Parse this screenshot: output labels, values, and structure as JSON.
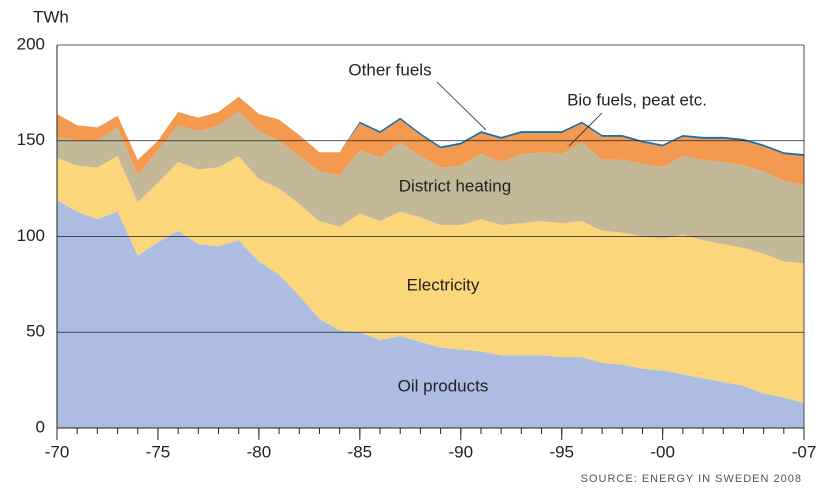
{
  "chart_data": {
    "type": "stacked_area",
    "y_label": "TWh",
    "source": "SOURCE: ENERGY IN SWEDEN 2008",
    "x": [
      1970,
      1971,
      1972,
      1973,
      1974,
      1975,
      1976,
      1977,
      1978,
      1979,
      1980,
      1981,
      1982,
      1983,
      1984,
      1985,
      1986,
      1987,
      1988,
      1989,
      1990,
      1991,
      1992,
      1993,
      1994,
      1995,
      1996,
      1997,
      1998,
      1999,
      2000,
      2001,
      2002,
      2003,
      2004,
      2005,
      2006,
      2007
    ],
    "xlim": [
      1970,
      2007
    ],
    "xticks": [
      {
        "value": 1970,
        "label": "-70"
      },
      {
        "value": 1975,
        "label": "-75"
      },
      {
        "value": 1980,
        "label": "-80"
      },
      {
        "value": 1985,
        "label": "-85"
      },
      {
        "value": 1990,
        "label": "-90"
      },
      {
        "value": 1995,
        "label": "-95"
      },
      {
        "value": 2000,
        "label": "-00"
      },
      {
        "value": 2007,
        "label": "-07"
      }
    ],
    "ylim": [
      0,
      200
    ],
    "yticks": [
      0,
      50,
      100,
      150,
      200
    ],
    "grid": true,
    "series": [
      {
        "name": "Oil products",
        "color": "#adbde1",
        "values": [
          119,
          113,
          109,
          113,
          90,
          97,
          103,
          96,
          95,
          98,
          87,
          80,
          69,
          57,
          51,
          50,
          46,
          48,
          45,
          42,
          41,
          40,
          38,
          38,
          38,
          37,
          37,
          34,
          33,
          31,
          30,
          28,
          26,
          24,
          22,
          18,
          16,
          13
        ]
      },
      {
        "name": "Electricity",
        "color": "#fbd67b",
        "values": [
          22,
          24,
          27,
          29,
          28,
          31,
          36,
          39,
          41,
          44,
          43,
          45,
          48,
          51,
          54,
          62,
          62,
          65,
          65,
          64,
          65,
          69,
          68,
          69,
          70,
          70,
          71,
          69,
          69,
          69,
          69,
          73,
          72,
          72,
          72,
          73,
          71,
          73
        ]
      },
      {
        "name": "District heating",
        "color": "#c3b999",
        "values": [
          11,
          13,
          14,
          15,
          14,
          17,
          19,
          20,
          22,
          23,
          25,
          25,
          25,
          26,
          27,
          33,
          33,
          36,
          32,
          30,
          31,
          34,
          33,
          36,
          36,
          36,
          41,
          37,
          38,
          38,
          37,
          41,
          42,
          43,
          43,
          43,
          42,
          41
        ]
      },
      {
        "name": "Bio fuels, peat etc.",
        "color": "#f39a50",
        "values": [
          12,
          8,
          7,
          6,
          8,
          5,
          7,
          7,
          7,
          8,
          9,
          11,
          11,
          10,
          12,
          14,
          13,
          12,
          11,
          10,
          11,
          11,
          12,
          11,
          10,
          11,
          10,
          12,
          12,
          11,
          11,
          10,
          11,
          12,
          13,
          13,
          14,
          15
        ]
      },
      {
        "name": "Other fuels",
        "color": "#1f6ea3",
        "values": [
          0,
          0,
          0,
          0,
          0,
          0,
          0,
          0,
          0,
          0,
          0,
          0,
          0,
          0,
          0,
          1,
          1,
          1,
          1,
          1,
          1,
          1,
          1,
          1,
          1,
          1,
          1,
          1,
          1,
          1,
          1,
          1,
          1,
          1,
          1,
          1,
          1,
          1
        ]
      }
    ]
  }
}
